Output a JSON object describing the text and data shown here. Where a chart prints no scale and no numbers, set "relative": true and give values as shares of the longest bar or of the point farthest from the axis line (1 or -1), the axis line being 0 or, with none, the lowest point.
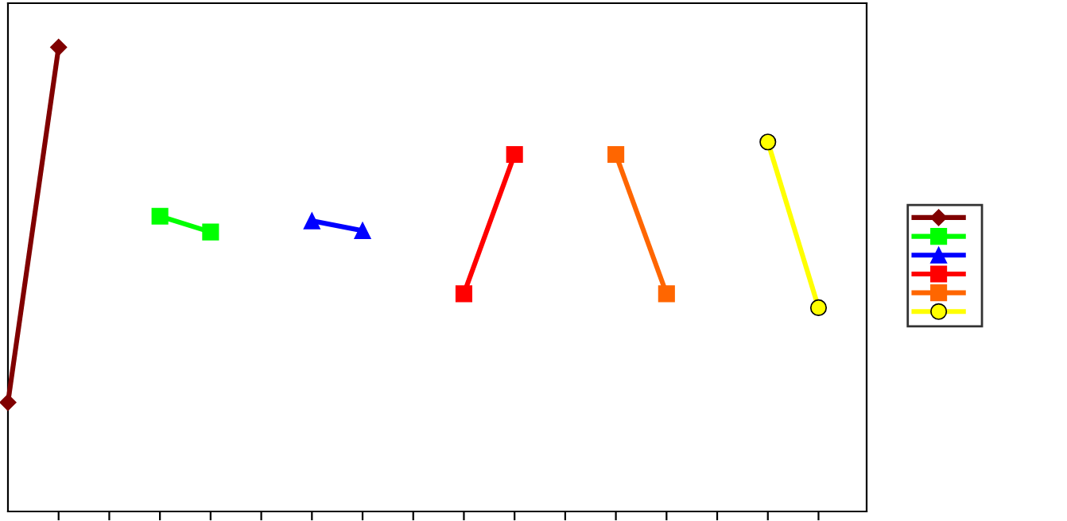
{
  "chart_data": {
    "type": "line",
    "relative": true,
    "grid": false,
    "categories": [
      null,
      null,
      null,
      null,
      null,
      null,
      null,
      null,
      null,
      null,
      null,
      null,
      null,
      null,
      null,
      null,
      null
    ],
    "series": [
      {
        "color": "#800000",
        "marker": "diamond",
        "values": [
          0.235,
          1.0,
          null,
          null,
          null,
          null,
          null,
          null,
          null,
          null,
          null,
          null,
          null,
          null,
          null,
          null,
          null
        ]
      },
      {
        "color": "#00ff00",
        "marker": "square",
        "values": [
          null,
          null,
          null,
          0.636,
          0.602,
          null,
          null,
          null,
          null,
          null,
          null,
          null,
          null,
          null,
          null,
          null,
          null
        ]
      },
      {
        "color": "#0000ff",
        "marker": "triangle",
        "values": [
          null,
          null,
          null,
          null,
          null,
          null,
          0.626,
          0.605,
          null,
          null,
          null,
          null,
          null,
          null,
          null,
          null,
          null
        ]
      },
      {
        "color": "#ff0000",
        "marker": "square",
        "values": [
          null,
          null,
          null,
          null,
          null,
          null,
          null,
          null,
          null,
          0.469,
          0.769,
          null,
          null,
          null,
          null,
          null,
          null
        ]
      },
      {
        "color": "#ff6600",
        "marker": "square",
        "values": [
          null,
          null,
          null,
          null,
          null,
          null,
          null,
          null,
          null,
          null,
          null,
          null,
          0.769,
          0.469,
          null,
          null,
          null
        ]
      },
      {
        "color": "#ffff00",
        "marker": "circle",
        "values": [
          null,
          null,
          null,
          null,
          null,
          null,
          null,
          null,
          null,
          null,
          null,
          null,
          null,
          null,
          null,
          0.796,
          0.439
        ]
      }
    ]
  }
}
